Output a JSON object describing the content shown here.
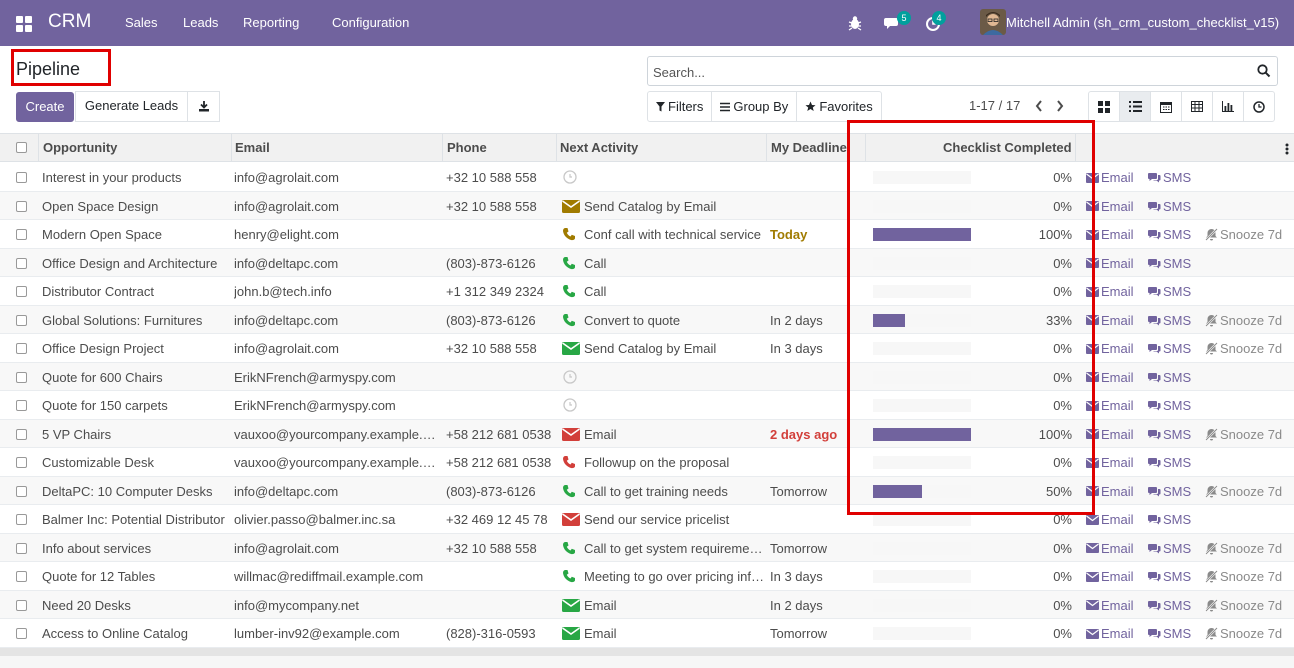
{
  "navbar": {
    "app_name": "CRM",
    "menu": [
      "Sales",
      "Leads",
      "Reporting",
      "Configuration"
    ],
    "messages_count": "5",
    "activities_count": "4",
    "user": "Mitchell Admin (sh_crm_custom_checklist_v15)"
  },
  "control_panel": {
    "title": "Pipeline",
    "create_label": "Create",
    "generate_label": "Generate Leads",
    "search_placeholder": "Search...",
    "filters_label": "Filters",
    "groupby_label": "Group By",
    "favorites_label": "Favorites",
    "pager": "1-17 / 17"
  },
  "table": {
    "headers": {
      "opportunity": "Opportunity",
      "email": "Email",
      "phone": "Phone",
      "next_activity": "Next Activity",
      "deadline": "My Deadline",
      "checklist": "Checklist Completed"
    },
    "email_action": "Email",
    "sms_action": "SMS",
    "snooze_action": "Snooze 7d",
    "rows": [
      {
        "name": "Interest in your products",
        "email": "info@agrolait.com",
        "phone": "+32 10 588 558",
        "activity": "",
        "activity_icon": "clock-icon",
        "deadline": "",
        "deadline_style": "",
        "progress": 0,
        "pct": "0%",
        "snooze": false
      },
      {
        "name": "Open Space Design",
        "email": "info@agrolait.com",
        "phone": "+32 10 588 558",
        "activity": "Send Catalog by Email",
        "activity_icon": "envelope-icon",
        "activity_color": "#a07b00",
        "deadline": "",
        "deadline_style": "",
        "progress": 0,
        "pct": "0%",
        "snooze": false
      },
      {
        "name": "Modern Open Space",
        "email": "henry@elight.com",
        "phone": "",
        "activity": "Conf call with technical service",
        "activity_icon": "phone-icon",
        "activity_color": "#a07b00",
        "deadline": "Today",
        "deadline_style": "today",
        "progress": 1,
        "pct": "100%",
        "snooze": true
      },
      {
        "name": "Office Design and Architecture",
        "email": "info@deltapc.com",
        "phone": "(803)-873-6126",
        "activity": "Call",
        "activity_icon": "phone-icon",
        "activity_color": "#28a745",
        "deadline": "",
        "deadline_style": "",
        "progress": 0,
        "pct": "0%",
        "snooze": false
      },
      {
        "name": "Distributor Contract",
        "email": "john.b@tech.info",
        "phone": "+1 312 349 2324",
        "activity": "Call",
        "activity_icon": "phone-icon",
        "activity_color": "#28a745",
        "deadline": "",
        "deadline_style": "",
        "progress": 0,
        "pct": "0%",
        "snooze": false
      },
      {
        "name": "Global Solutions: Furnitures",
        "email": "info@deltapc.com",
        "phone": "(803)-873-6126",
        "activity": "Convert to quote",
        "activity_icon": "phone-icon",
        "activity_color": "#28a745",
        "deadline": "In 2 days",
        "deadline_style": "",
        "progress": 0.33,
        "pct": "33%",
        "snooze": true
      },
      {
        "name": "Office Design Project",
        "email": "info@agrolait.com",
        "phone": "+32 10 588 558",
        "activity": "Send Catalog by Email",
        "activity_icon": "envelope-icon",
        "activity_color": "#28a745",
        "deadline": "In 3 days",
        "deadline_style": "",
        "progress": 0,
        "pct": "0%",
        "snooze": true
      },
      {
        "name": "Quote for 600 Chairs",
        "email": "ErikNFrench@armyspy.com",
        "phone": "",
        "activity": "",
        "activity_icon": "clock-icon",
        "deadline": "",
        "deadline_style": "",
        "progress": 0,
        "pct": "0%",
        "snooze": false
      },
      {
        "name": "Quote for 150 carpets",
        "email": "ErikNFrench@armyspy.com",
        "phone": "",
        "activity": "",
        "activity_icon": "clock-icon",
        "deadline": "",
        "deadline_style": "",
        "progress": 0,
        "pct": "0%",
        "snooze": false
      },
      {
        "name": "5 VP Chairs",
        "email": "vauxoo@yourcompany.example.com",
        "phone": "+58 212 681 0538",
        "activity": "Email",
        "activity_icon": "envelope-icon",
        "activity_color": "#d23f3a",
        "deadline": "2 days ago",
        "deadline_style": "late",
        "progress": 1,
        "pct": "100%",
        "snooze": true
      },
      {
        "name": "Customizable Desk",
        "email": "vauxoo@yourcompany.example.com",
        "phone": "+58 212 681 0538",
        "activity": "Followup on the proposal",
        "activity_icon": "phone-icon",
        "activity_color": "#d23f3a",
        "deadline": "",
        "deadline_style": "",
        "progress": 0,
        "pct": "0%",
        "snooze": false
      },
      {
        "name": "DeltaPC: 10 Computer Desks",
        "email": "info@deltapc.com",
        "phone": "(803)-873-6126",
        "activity": "Call to get training needs",
        "activity_icon": "phone-icon",
        "activity_color": "#28a745",
        "deadline": "Tomorrow",
        "deadline_style": "",
        "progress": 0.5,
        "pct": "50%",
        "snooze": true
      },
      {
        "name": "Balmer Inc: Potential Distributor",
        "email": "olivier.passo@balmer.inc.sa",
        "phone": "+32 469 12 45 78",
        "activity": "Send our service pricelist",
        "activity_icon": "envelope-icon",
        "activity_color": "#d23f3a",
        "deadline": "",
        "deadline_style": "",
        "progress": 0,
        "pct": "0%",
        "snooze": false
      },
      {
        "name": "Info about services",
        "email": "info@agrolait.com",
        "phone": "+32 10 588 558",
        "activity": "Call to get system requirements",
        "activity_icon": "phone-icon",
        "activity_color": "#28a745",
        "deadline": "Tomorrow",
        "deadline_style": "",
        "progress": 0,
        "pct": "0%",
        "snooze": true
      },
      {
        "name": "Quote for 12 Tables",
        "email": "willmac@rediffmail.example.com",
        "phone": "",
        "activity": "Meeting to go over pricing information",
        "activity_icon": "phone-icon",
        "activity_color": "#28a745",
        "deadline": "In 3 days",
        "deadline_style": "",
        "progress": 0,
        "pct": "0%",
        "snooze": true
      },
      {
        "name": "Need 20 Desks",
        "email": "info@mycompany.net",
        "phone": "",
        "activity": "Email",
        "activity_icon": "envelope-icon",
        "activity_color": "#28a745",
        "deadline": "In 2 days",
        "deadline_style": "",
        "progress": 0,
        "pct": "0%",
        "snooze": true
      },
      {
        "name": "Access to Online Catalog",
        "email": "lumber-inv92@example.com",
        "phone": "(828)-316-0593",
        "activity": "Email",
        "activity_icon": "envelope-icon",
        "activity_color": "#28a745",
        "deadline": "Tomorrow",
        "deadline_style": "",
        "progress": 0,
        "pct": "0%",
        "snooze": true
      }
    ]
  },
  "colors": {
    "brand": "#71639e",
    "highlight": "#e00000"
  }
}
